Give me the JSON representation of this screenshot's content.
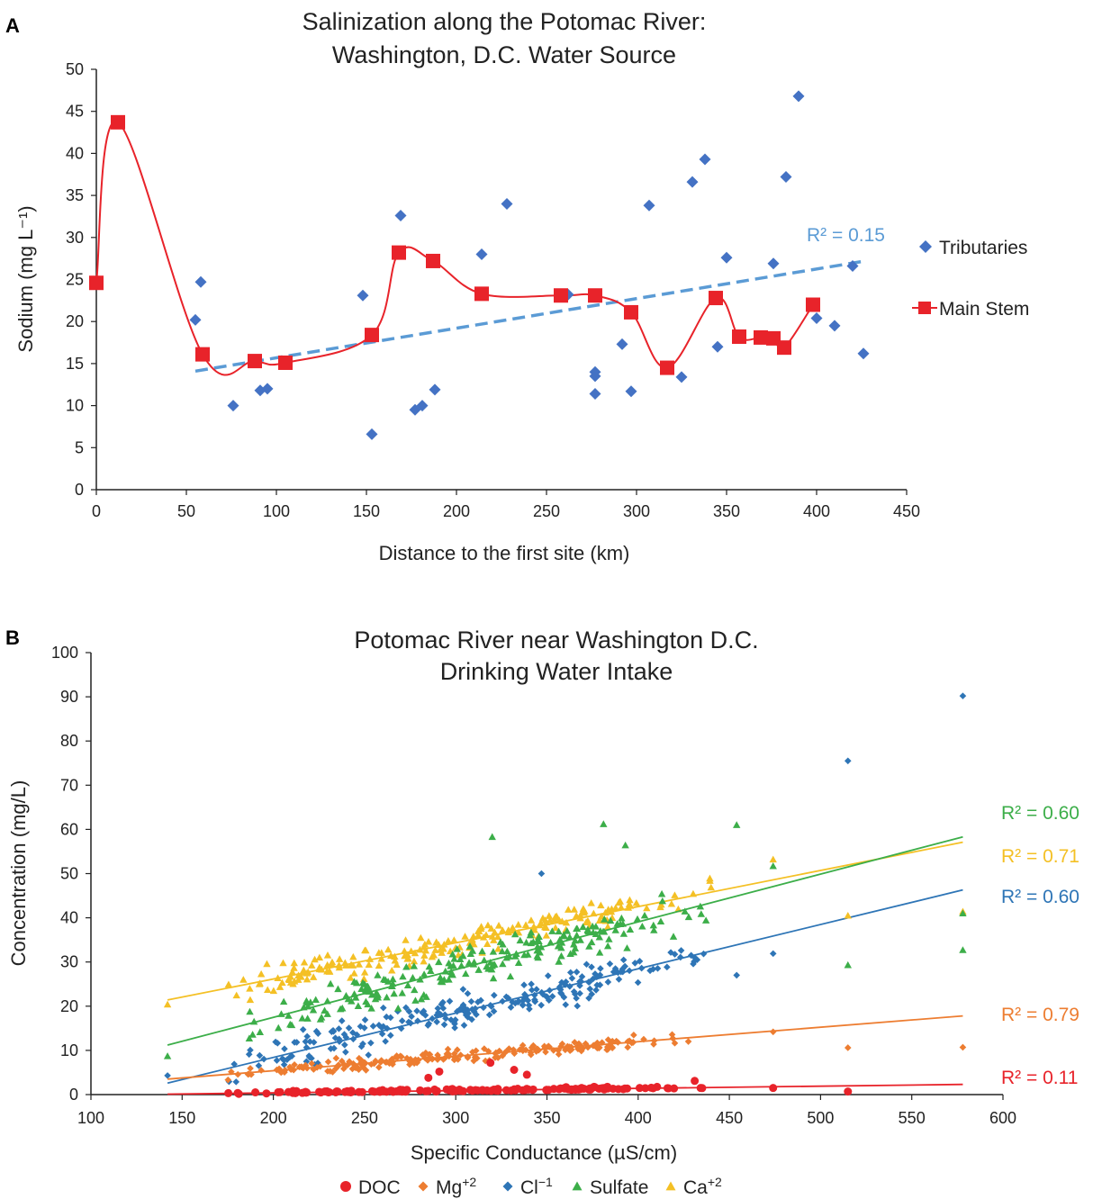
{
  "panels": {
    "a_label": "A",
    "b_label": "B"
  },
  "chart_data": [
    {
      "panel": "A",
      "type": "scatter",
      "title_line1": "Salinization along the Potomac River:",
      "title_line2": "Washington, D.C. Water Source",
      "xlabel": "Distance to the first site (km)",
      "ylabel": "Sodium (mg L⁻¹)",
      "xlim": [
        0,
        450
      ],
      "ylim": [
        0,
        50
      ],
      "xticks": [
        "0",
        "50",
        "100",
        "150",
        "200",
        "250",
        "300",
        "350",
        "400",
        "450"
      ],
      "yticks": [
        "0",
        "5",
        "10",
        "15",
        "20",
        "25",
        "30",
        "35",
        "40",
        "45",
        "50"
      ],
      "legend_position": "right",
      "series": [
        {
          "name": "Tributaries",
          "marker": "diamond",
          "color": "#4472c4",
          "points": [
            [
              55,
              20.2
            ],
            [
              58,
              24.7
            ],
            [
              76,
              10
            ],
            [
              91,
              11.8
            ],
            [
              95,
              12
            ],
            [
              148,
              23.1
            ],
            [
              153,
              6.6
            ],
            [
              169,
              32.6
            ],
            [
              177,
              9.5
            ],
            [
              181,
              10
            ],
            [
              188,
              11.9
            ],
            [
              214,
              28
            ],
            [
              228,
              34
            ],
            [
              262,
              23.2
            ],
            [
              277,
              14
            ],
            [
              277,
              13.5
            ],
            [
              277,
              11.4
            ],
            [
              292,
              17.3
            ],
            [
              297,
              11.7
            ],
            [
              307,
              33.8
            ],
            [
              325,
              13.4
            ],
            [
              331,
              36.6
            ],
            [
              338,
              39.3
            ],
            [
              345,
              17
            ],
            [
              350,
              27.6
            ],
            [
              376,
              26.9
            ],
            [
              383,
              37.2
            ],
            [
              390,
              46.8
            ],
            [
              400,
              20.4
            ],
            [
              410,
              19.5
            ],
            [
              420,
              26.6
            ],
            [
              426,
              16.2
            ]
          ]
        },
        {
          "name": "Main Stem",
          "marker": "square",
          "color": "#e8232a",
          "points": [
            [
              0,
              24.6
            ],
            [
              12,
              43.7
            ],
            [
              59,
              16.1
            ],
            [
              88,
              15.3
            ],
            [
              105,
              15.1
            ],
            [
              153,
              18.4
            ],
            [
              168,
              28.2
            ],
            [
              187,
              27.2
            ],
            [
              214,
              23.3
            ],
            [
              258,
              23.1
            ],
            [
              277,
              23.1
            ],
            [
              297,
              21.1
            ],
            [
              317,
              14.5
            ],
            [
              344,
              22.8
            ],
            [
              357,
              18.2
            ],
            [
              369,
              18.1
            ],
            [
              376,
              18
            ],
            [
              382,
              16.9
            ],
            [
              398,
              22
            ]
          ]
        }
      ],
      "trendline": {
        "label": "R² = 0.15",
        "color": "#5b9bd5",
        "x": [
          55,
          427
        ],
        "y": [
          14.1,
          27.2
        ]
      }
    },
    {
      "panel": "B",
      "type": "scatter",
      "title_line1": "Potomac River near Washington D.C.",
      "title_line2": "Drinking Water Intake",
      "xlabel": "Specific Conductance (µS/cm)",
      "ylabel": "Concentration (mg/L)",
      "xlim": [
        100,
        600
      ],
      "ylim": [
        0,
        100
      ],
      "xticks": [
        "100",
        "150",
        "200",
        "250",
        "300",
        "350",
        "400",
        "450",
        "500",
        "550",
        "600"
      ],
      "yticks": [
        "0",
        "10",
        "20",
        "30",
        "40",
        "50",
        "60",
        "70",
        "80",
        "90",
        "100"
      ],
      "legend_position": "bottom",
      "series": [
        {
          "name": "DOC",
          "marker": "circle",
          "color": "#e8232a",
          "trend": {
            "label": "R² = 0.11",
            "x": [
              142,
              578
            ],
            "y": [
              0.1,
              2.3
            ]
          },
          "outliers": [
            [
              285,
              3.8
            ],
            [
              291,
              5.2
            ],
            [
              319,
              7.2
            ],
            [
              332,
              5.6
            ],
            [
              339,
              4.5
            ],
            [
              431,
              3.1
            ],
            [
              474,
              1.5
            ],
            [
              515,
              0.7
            ]
          ]
        },
        {
          "name": "Mg",
          "name_sup": "+2",
          "marker": "diamond",
          "color": "#ed7d31",
          "trend": {
            "label": "R² = 0.79",
            "x": [
              142,
              578
            ],
            "y": [
              3.5,
              17.8
            ]
          },
          "outliers": [
            [
              474,
              14.2
            ],
            [
              515,
              10.6
            ],
            [
              578,
              10.7
            ]
          ]
        },
        {
          "name": "Cl",
          "name_sup": "−1",
          "marker": "diamond",
          "color": "#2e75b6",
          "trend": {
            "label": "R² = 0.60",
            "x": [
              142,
              578
            ],
            "y": [
              2.6,
              46.3
            ]
          },
          "outliers": [
            [
              142,
              4.3
            ],
            [
              454,
              27
            ],
            [
              474,
              31.9
            ],
            [
              515,
              75.5
            ],
            [
              578,
              90.2
            ],
            [
              347,
              50
            ]
          ]
        },
        {
          "name": "Sulfate",
          "marker": "triangle",
          "color": "#3cae49",
          "trend": {
            "label": "R² = 0.60",
            "x": [
              142,
              578
            ],
            "y": [
              11.2,
              58.3
            ]
          },
          "outliers": [
            [
              142,
              8.7
            ],
            [
              320,
              58.3
            ],
            [
              381,
              61.2
            ],
            [
              393,
              56.4
            ],
            [
              454,
              61
            ],
            [
              474,
              51.7
            ],
            [
              515,
              29.3
            ],
            [
              578,
              32.7
            ],
            [
              578,
              41
            ]
          ]
        },
        {
          "name": "Ca",
          "name_sup": "+2",
          "marker": "triangle",
          "color": "#f4c025",
          "trend": {
            "label": "R² = 0.71",
            "x": [
              142,
              578
            ],
            "y": [
              21.4,
              57.1
            ]
          },
          "outliers": [
            [
              142,
              20.4
            ],
            [
              474,
              53.2
            ],
            [
              515,
              40.5
            ],
            [
              578,
              41.4
            ]
          ]
        }
      ]
    }
  ]
}
